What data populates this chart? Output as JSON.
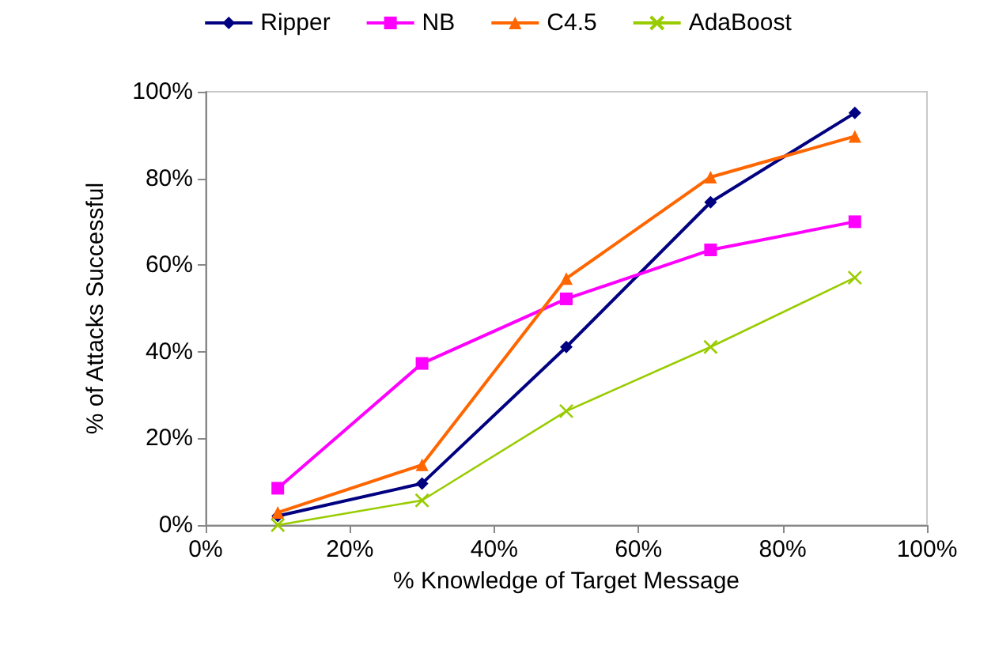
{
  "chart_data": {
    "type": "line",
    "xlabel": "% Knowledge of Target Message",
    "ylabel": "% of Attacks Successful",
    "x": [
      10,
      30,
      50,
      70,
      90
    ],
    "xlim": [
      0,
      100
    ],
    "xticks": [
      {
        "value": 0,
        "label": "0%"
      },
      {
        "value": 20,
        "label": "20%"
      },
      {
        "value": 40,
        "label": "40%"
      },
      {
        "value": 60,
        "label": "60%"
      },
      {
        "value": 80,
        "label": "80%"
      },
      {
        "value": 100,
        "label": "100%"
      }
    ],
    "ylim": [
      0,
      100
    ],
    "yticks": [
      {
        "value": 0,
        "label": "0%"
      },
      {
        "value": 20,
        "label": "20%"
      },
      {
        "value": 40,
        "label": "40%"
      },
      {
        "value": 60,
        "label": "60%"
      },
      {
        "value": 80,
        "label": "80%"
      },
      {
        "value": 100,
        "label": "100%"
      }
    ],
    "grid": false,
    "legend": "top",
    "series": [
      {
        "name": "Ripper",
        "color": "#000080",
        "marker": "diamond",
        "values": [
          2.1,
          9.6,
          41.1,
          74.5,
          95.1
        ]
      },
      {
        "name": "NB",
        "color": "#ff00ff",
        "marker": "square",
        "values": [
          8.5,
          37.3,
          52.2,
          63.5,
          70
        ]
      },
      {
        "name": "C4.5",
        "color": "#ff6600",
        "marker": "triangle",
        "values": [
          2.9,
          13.9,
          56.9,
          80.3,
          89.7
        ]
      },
      {
        "name": "AdaBoost",
        "color": "#99cc00",
        "marker": "cross",
        "values": [
          0,
          5.7,
          26.3,
          41.1,
          57.1
        ]
      }
    ]
  }
}
